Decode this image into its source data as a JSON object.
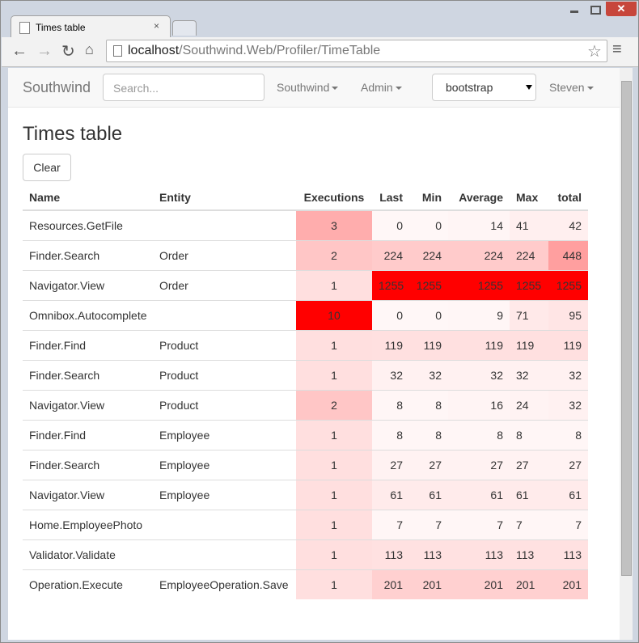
{
  "browser": {
    "tab_title": "Times table",
    "url_host": "localhost",
    "url_path": "/Southwind.Web/Profiler/TimeTable"
  },
  "navbar": {
    "brand": "Southwind",
    "search_placeholder": "Search...",
    "menus": [
      "Southwind",
      "Admin"
    ],
    "theme_select": "bootstrap",
    "user": "Steven"
  },
  "page": {
    "title": "Times table",
    "button": "Clear"
  },
  "table": {
    "headers": [
      "Name",
      "Entity",
      "Executions",
      "Last",
      "Min",
      "Average",
      "Max",
      "total"
    ],
    "rows": [
      {
        "name": "Resources.GetFile",
        "executions": 3,
        "last": 0,
        "min": 0,
        "average": 14,
        "max": 41,
        "total": 42
      },
      {
        "name": "Finder.Search",
        "entity": "Order",
        "executions": 2,
        "last": 224,
        "min": 224,
        "average": 224,
        "max": 224,
        "total": 448
      },
      {
        "name": "Navigator.View",
        "entity": "Order",
        "executions": 1,
        "last": 1255,
        "min": 1255,
        "average": 1255,
        "max": 1255,
        "total": 1255
      },
      {
        "name": "Omnibox.Autocomplete",
        "executions": 10,
        "last": 0,
        "min": 0,
        "average": 9,
        "max": 71,
        "total": 95
      },
      {
        "name": "Finder.Find",
        "entity": "Product",
        "executions": 1,
        "last": 119,
        "min": 119,
        "average": 119,
        "max": 119,
        "total": 119
      },
      {
        "name": "Finder.Search",
        "entity": "Product",
        "executions": 1,
        "last": 32,
        "min": 32,
        "average": 32,
        "max": 32,
        "total": 32
      },
      {
        "name": "Navigator.View",
        "entity": "Product",
        "executions": 2,
        "last": 8,
        "min": 8,
        "average": 16,
        "max": 24,
        "total": 32
      },
      {
        "name": "Finder.Find",
        "entity": "Employee",
        "executions": 1,
        "last": 8,
        "min": 8,
        "average": 8,
        "max": 8,
        "total": 8
      },
      {
        "name": "Finder.Search",
        "entity": "Employee",
        "executions": 1,
        "last": 27,
        "min": 27,
        "average": 27,
        "max": 27,
        "total": 27
      },
      {
        "name": "Navigator.View",
        "entity": "Employee",
        "executions": 1,
        "last": 61,
        "min": 61,
        "average": 61,
        "max": 61,
        "total": 61
      },
      {
        "name": "Home.EmployeePhoto",
        "executions": 1,
        "last": 7,
        "min": 7,
        "average": 7,
        "max": 7,
        "total": 7
      },
      {
        "name": "Validator.Validate",
        "executions": 1,
        "last": 113,
        "min": 113,
        "average": 113,
        "max": 113,
        "total": 113
      },
      {
        "name": "Operation.Execute",
        "entity": "EmployeeOperation.Save",
        "executions": 1,
        "last": 201,
        "min": 201,
        "average": 201,
        "max": 201,
        "total": 201
      }
    ]
  }
}
